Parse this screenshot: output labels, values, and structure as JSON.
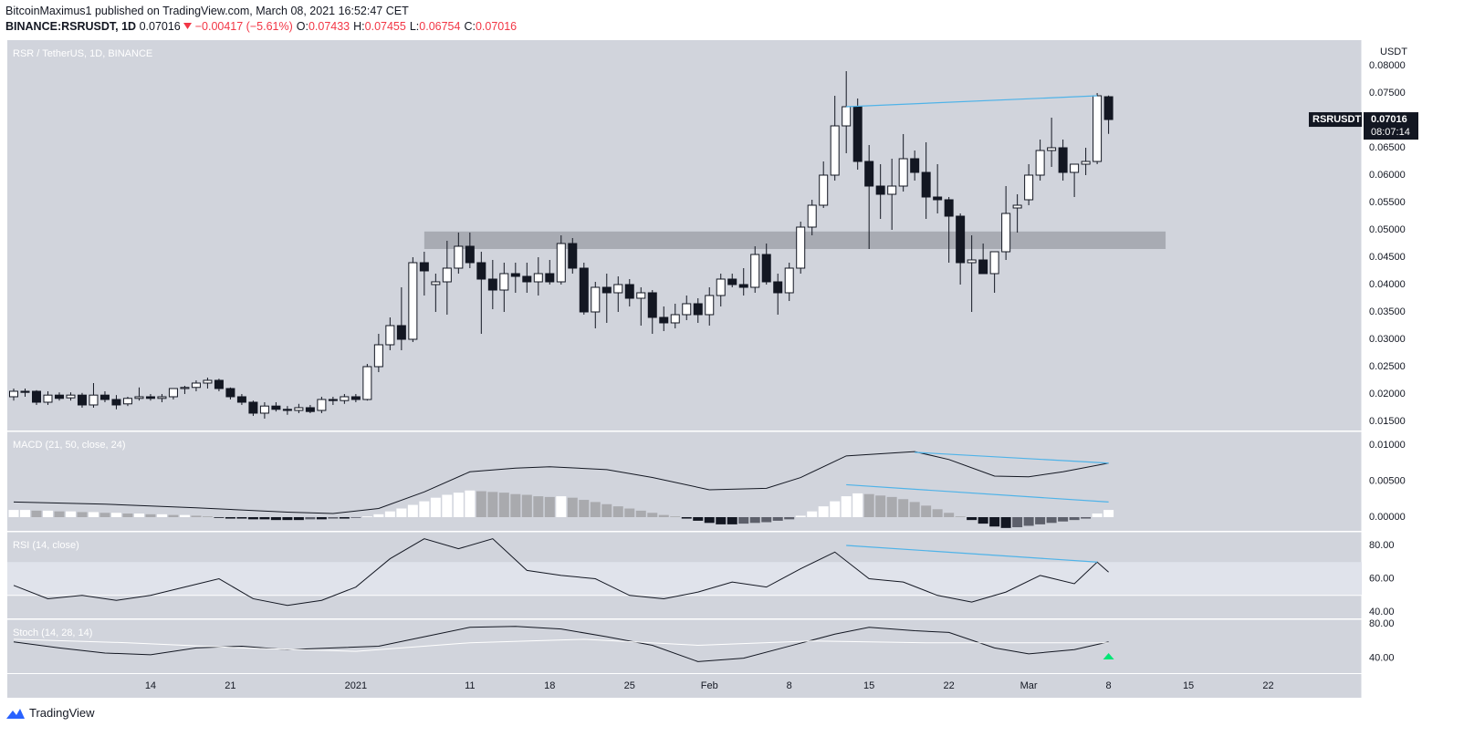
{
  "header": {
    "author": "BitcoinMaximus1",
    "published": "published on TradingView.com, March 08, 2021 16:52:47 CET",
    "symbol": "BINANCE:RSRUSDT, 1D",
    "last": "0.07016",
    "change": "−0.00417 (−5.61%)",
    "ohlc": [
      {
        "key": "O:",
        "value": "0.07433"
      },
      {
        "key": "H:",
        "value": "0.07455"
      },
      {
        "key": "L:",
        "value": "0.06754"
      },
      {
        "key": "C:",
        "value": "0.07016"
      }
    ]
  },
  "footer": {
    "brand": "TradingView"
  },
  "chart_data": {
    "type": "candlestick",
    "title": "RSR / TetherUS, 1D, BINANCE",
    "y_axis_label": "USDT",
    "grid": false,
    "up_color": "#ffffff",
    "down_color": "#131722",
    "background": "#d1d4dc",
    "xlim": [
      -0.56,
      118.2
    ],
    "xticks": [
      {
        "value": 12,
        "label": "14"
      },
      {
        "value": 19,
        "label": "21"
      },
      {
        "value": 30,
        "label": "2021"
      },
      {
        "value": 40,
        "label": "11"
      },
      {
        "value": 47,
        "label": "18"
      },
      {
        "value": 54,
        "label": "25"
      },
      {
        "value": 61,
        "label": "Feb"
      },
      {
        "value": 68,
        "label": "8"
      },
      {
        "value": 75,
        "label": "15"
      },
      {
        "value": 82,
        "label": "22"
      },
      {
        "value": 89,
        "label": "Mar"
      },
      {
        "value": 96,
        "label": "8"
      },
      {
        "value": 103,
        "label": "15"
      },
      {
        "value": 110,
        "label": "22"
      }
    ],
    "ylim": [
      0.01333,
      0.08467
    ],
    "yticks": [
      {
        "value": 0.08,
        "label": "0.08000"
      },
      {
        "value": 0.075,
        "label": "0.07500"
      },
      {
        "value": 0.07,
        "label": "0.07000"
      },
      {
        "value": 0.065,
        "label": "0.06500"
      },
      {
        "value": 0.06,
        "label": "0.06000"
      },
      {
        "value": 0.055,
        "label": "0.05500"
      },
      {
        "value": 0.05,
        "label": "0.05000"
      },
      {
        "value": 0.045,
        "label": "0.04500"
      },
      {
        "value": 0.04,
        "label": "0.04000"
      },
      {
        "value": 0.035,
        "label": "0.03500"
      },
      {
        "value": 0.03,
        "label": "0.03000"
      },
      {
        "value": 0.025,
        "label": "0.02500"
      },
      {
        "value": 0.02,
        "label": "0.02000"
      },
      {
        "value": 0.015,
        "label": "0.01500"
      }
    ],
    "candles": [
      [
        0.0195,
        0.021,
        0.0188,
        0.0205
      ],
      [
        0.0205,
        0.021,
        0.0195,
        0.0203
      ],
      [
        0.0205,
        0.0207,
        0.018,
        0.0185
      ],
      [
        0.0185,
        0.0205,
        0.018,
        0.0198
      ],
      [
        0.0198,
        0.0203,
        0.0188,
        0.0192
      ],
      [
        0.0193,
        0.0203,
        0.0188,
        0.0198
      ],
      [
        0.0198,
        0.0202,
        0.0175,
        0.018
      ],
      [
        0.018,
        0.022,
        0.0175,
        0.0198
      ],
      [
        0.0198,
        0.0205,
        0.0185,
        0.019
      ],
      [
        0.019,
        0.0198,
        0.0172,
        0.018
      ],
      [
        0.0182,
        0.0195,
        0.0178,
        0.0192
      ],
      [
        0.0192,
        0.0212,
        0.0188,
        0.0195
      ],
      [
        0.0195,
        0.02,
        0.0188,
        0.0192
      ],
      [
        0.0192,
        0.02,
        0.0185,
        0.0195
      ],
      [
        0.0195,
        0.021,
        0.019,
        0.021
      ],
      [
        0.021,
        0.0215,
        0.02,
        0.0212
      ],
      [
        0.0212,
        0.0225,
        0.0205,
        0.022
      ],
      [
        0.022,
        0.023,
        0.021,
        0.0225
      ],
      [
        0.0225,
        0.0228,
        0.0205,
        0.021
      ],
      [
        0.021,
        0.0212,
        0.019,
        0.0195
      ],
      [
        0.0195,
        0.02,
        0.018,
        0.0185
      ],
      [
        0.0185,
        0.0188,
        0.016,
        0.0165
      ],
      [
        0.0165,
        0.0185,
        0.0155,
        0.0178
      ],
      [
        0.0178,
        0.0185,
        0.0168,
        0.0172
      ],
      [
        0.0172,
        0.0178,
        0.0162,
        0.017
      ],
      [
        0.017,
        0.0182,
        0.0165,
        0.0175
      ],
      [
        0.0175,
        0.018,
        0.0165,
        0.0168
      ],
      [
        0.017,
        0.0195,
        0.0165,
        0.019
      ],
      [
        0.019,
        0.0195,
        0.018,
        0.0188
      ],
      [
        0.0188,
        0.02,
        0.0182,
        0.0195
      ],
      [
        0.0195,
        0.02,
        0.0185,
        0.019
      ],
      [
        0.019,
        0.0255,
        0.0188,
        0.025
      ],
      [
        0.025,
        0.031,
        0.024,
        0.029
      ],
      [
        0.029,
        0.034,
        0.028,
        0.0325
      ],
      [
        0.0325,
        0.0395,
        0.028,
        0.03
      ],
      [
        0.03,
        0.045,
        0.0295,
        0.044
      ],
      [
        0.044,
        0.046,
        0.038,
        0.0425
      ],
      [
        0.04,
        0.042,
        0.035,
        0.0405
      ],
      [
        0.0405,
        0.048,
        0.0345,
        0.043
      ],
      [
        0.043,
        0.0495,
        0.042,
        0.047
      ],
      [
        0.047,
        0.0495,
        0.043,
        0.044
      ],
      [
        0.044,
        0.046,
        0.031,
        0.041
      ],
      [
        0.041,
        0.0445,
        0.0355,
        0.039
      ],
      [
        0.039,
        0.044,
        0.035,
        0.042
      ],
      [
        0.042,
        0.044,
        0.0385,
        0.0415
      ],
      [
        0.0415,
        0.044,
        0.0385,
        0.0405
      ],
      [
        0.0405,
        0.045,
        0.038,
        0.042
      ],
      [
        0.042,
        0.0445,
        0.04,
        0.0405
      ],
      [
        0.0405,
        0.049,
        0.04,
        0.0475
      ],
      [
        0.0475,
        0.0485,
        0.042,
        0.043
      ],
      [
        0.043,
        0.044,
        0.0345,
        0.035
      ],
      [
        0.035,
        0.0405,
        0.032,
        0.0395
      ],
      [
        0.0395,
        0.042,
        0.033,
        0.0385
      ],
      [
        0.0385,
        0.0415,
        0.035,
        0.04
      ],
      [
        0.04,
        0.041,
        0.036,
        0.0375
      ],
      [
        0.0375,
        0.0395,
        0.0325,
        0.0385
      ],
      [
        0.0385,
        0.039,
        0.031,
        0.034
      ],
      [
        0.034,
        0.036,
        0.0315,
        0.033
      ],
      [
        0.033,
        0.0365,
        0.032,
        0.0345
      ],
      [
        0.0345,
        0.038,
        0.0335,
        0.0365
      ],
      [
        0.0365,
        0.0375,
        0.033,
        0.0345
      ],
      [
        0.0345,
        0.0395,
        0.0325,
        0.038
      ],
      [
        0.038,
        0.042,
        0.036,
        0.041
      ],
      [
        0.041,
        0.042,
        0.0395,
        0.04
      ],
      [
        0.04,
        0.043,
        0.038,
        0.0395
      ],
      [
        0.0395,
        0.047,
        0.0385,
        0.0455
      ],
      [
        0.0455,
        0.0475,
        0.04,
        0.0405
      ],
      [
        0.0405,
        0.042,
        0.0345,
        0.0385
      ],
      [
        0.0385,
        0.044,
        0.037,
        0.043
      ],
      [
        0.043,
        0.0515,
        0.042,
        0.0505
      ],
      [
        0.0505,
        0.0555,
        0.049,
        0.0545
      ],
      [
        0.0545,
        0.0625,
        0.054,
        0.06
      ],
      [
        0.06,
        0.0745,
        0.059,
        0.069
      ],
      [
        0.069,
        0.079,
        0.064,
        0.0725
      ],
      [
        0.0725,
        0.074,
        0.061,
        0.0625
      ],
      [
        0.0625,
        0.0655,
        0.0465,
        0.058
      ],
      [
        0.058,
        0.062,
        0.052,
        0.0565
      ],
      [
        0.0565,
        0.063,
        0.05,
        0.058
      ],
      [
        0.058,
        0.0675,
        0.057,
        0.063
      ],
      [
        0.063,
        0.0645,
        0.059,
        0.0605
      ],
      [
        0.0605,
        0.066,
        0.052,
        0.056
      ],
      [
        0.056,
        0.062,
        0.053,
        0.0555
      ],
      [
        0.0555,
        0.056,
        0.044,
        0.0525
      ],
      [
        0.0525,
        0.053,
        0.04,
        0.044
      ],
      [
        0.044,
        0.049,
        0.035,
        0.0445
      ],
      [
        0.0445,
        0.0475,
        0.042,
        0.042
      ],
      [
        0.042,
        0.046,
        0.0385,
        0.046
      ],
      [
        0.046,
        0.058,
        0.0445,
        0.053
      ],
      [
        0.054,
        0.0565,
        0.0495,
        0.0545
      ],
      [
        0.0555,
        0.062,
        0.0545,
        0.06
      ],
      [
        0.06,
        0.0665,
        0.059,
        0.0645
      ],
      [
        0.0645,
        0.0705,
        0.0615,
        0.065
      ],
      [
        0.065,
        0.0665,
        0.059,
        0.0605
      ],
      [
        0.0605,
        0.062,
        0.056,
        0.062
      ],
      [
        0.062,
        0.065,
        0.06,
        0.0625
      ],
      [
        0.0625,
        0.075,
        0.062,
        0.0745
      ],
      [
        0.07433,
        0.07455,
        0.06754,
        0.07016
      ]
    ],
    "zone": {
      "x": [
        36,
        101
      ],
      "values": [
        0.0465,
        0.0497
      ],
      "color": "#a8abb3"
    },
    "trendline": {
      "x": [
        73,
        95
      ],
      "values": [
        0.0725,
        0.0745
      ],
      "color": "#4fb3e8"
    },
    "last_price": {
      "symbol": "RSRUSDT",
      "price": "0.07016",
      "countdown": "08:07:14"
    },
    "indicators": [
      {
        "type": "macd",
        "title": "MACD (21, 50, close, 24)",
        "ylim": [
          -0.0019,
          0.0119
        ],
        "yticks": [
          {
            "value": 0.01,
            "label": "0.01000"
          },
          {
            "value": 0.005,
            "label": "0.00500"
          },
          {
            "value": 0,
            "label": "0.00000"
          }
        ],
        "histogram": {
          "colors": [
            "#ffffff",
            "#a9aaae",
            "#5d606b",
            "#131722"
          ],
          "values": [
            0.001,
            0.001,
            0.0009,
            0.0009,
            0.0008,
            0.0008,
            0.0007,
            0.0007,
            0.0006,
            0.0006,
            0.0005,
            0.0005,
            0.0004,
            0.0004,
            0.0003,
            0.0003,
            0.0002,
            0.0001,
            -0.0001,
            -0.0002,
            -0.0002,
            -0.0003,
            -0.0003,
            -0.0004,
            -0.0004,
            -0.0004,
            -0.0003,
            -0.0003,
            -0.0002,
            -0.0002,
            -0.0001,
            0.0001,
            0.0004,
            0.0008,
            0.0012,
            0.0017,
            0.0022,
            0.0027,
            0.0031,
            0.0034,
            0.0037,
            0.0036,
            0.0035,
            0.0034,
            0.0032,
            0.0031,
            0.0029,
            0.0028,
            0.0029,
            0.0027,
            0.0024,
            0.0021,
            0.0018,
            0.0015,
            0.0012,
            0.0009,
            0.0006,
            0.0003,
            0.0001,
            -0.0002,
            -0.0005,
            -0.0008,
            -0.001,
            -0.001,
            -0.0009,
            -0.0008,
            -0.0007,
            -0.0005,
            -0.0003,
            0.0002,
            0.0008,
            0.0015,
            0.0022,
            0.0029,
            0.0033,
            0.0032,
            0.003,
            0.0028,
            0.0025,
            0.0021,
            0.0016,
            0.0011,
            0.0006,
            0.0001,
            -0.0004,
            -0.0009,
            -0.0013,
            -0.0015,
            -0.0014,
            -0.0012,
            -0.001,
            -0.0008,
            -0.0006,
            -0.0004,
            -0.0002,
            0.0005,
            0.001
          ]
        },
        "series": [
          {
            "color": "#131722",
            "x": [
              0,
              8,
              16,
              24,
              28,
              32,
              36,
              40,
              44,
              47,
              52,
              56,
              61,
              66,
              69,
              73,
              76,
              79,
              82,
              86,
              89,
              92,
              96
            ],
            "values": [
              0.0021,
              0.0018,
              0.0013,
              0.0007,
              0.0005,
              0.0012,
              0.0035,
              0.0063,
              0.0068,
              0.007,
              0.0066,
              0.0055,
              0.0038,
              0.004,
              0.0055,
              0.0085,
              0.0088,
              0.0091,
              0.008,
              0.0057,
              0.0056,
              0.0063,
              0.0075
            ]
          }
        ],
        "trendlines": [
          {
            "x": [
              79,
              96
            ],
            "values": [
              0.009,
              0.0075
            ],
            "color": "#4fb3e8"
          },
          {
            "x": [
              73,
              96
            ],
            "values": [
              0.0045,
              0.0021
            ],
            "color": "#4fb3e8"
          }
        ]
      },
      {
        "type": "rsi",
        "title": "RSI (14, close)",
        "ylim": [
          36.2,
          88.2
        ],
        "yticks": [
          {
            "value": 80,
            "label": "80.00"
          },
          {
            "value": 60,
            "label": "60.00"
          },
          {
            "value": 40,
            "label": "40.00"
          }
        ],
        "band": [
          50,
          70
        ],
        "series": [
          {
            "color": "#131722",
            "x": [
              0,
              3,
              6,
              9,
              12,
              15,
              18,
              21,
              24,
              27,
              30,
              33,
              36,
              39,
              42,
              45,
              48,
              51,
              54,
              57,
              60,
              63,
              66,
              69,
              72,
              75,
              78,
              81,
              84,
              87,
              90,
              93,
              95,
              96
            ],
            "values": [
              56,
              48,
              50,
              47,
              50,
              55,
              60,
              48,
              44,
              47,
              55,
              72,
              84,
              78,
              84,
              65,
              62,
              60,
              50,
              48,
              52,
              58,
              55,
              66,
              76,
              60,
              58,
              50,
              46,
              52,
              62,
              57,
              70,
              64
            ]
          }
        ],
        "trendlines": [
          {
            "x": [
              73,
              95
            ],
            "values": [
              80,
              70
            ],
            "color": "#4fb3e8"
          }
        ]
      },
      {
        "type": "stoch",
        "title": "Stoch (14, 28, 14)",
        "ylim": [
          22.6,
          85.3
        ],
        "yticks": [
          {
            "value": 80,
            "label": "80.00"
          },
          {
            "value": 40,
            "label": "40.00"
          }
        ],
        "marker": {
          "x": 96,
          "color": "#00e676"
        },
        "series": [
          {
            "color": "#131722",
            "x": [
              0,
              4,
              8,
              12,
              16,
              20,
              24,
              28,
              32,
              36,
              40,
              44,
              48,
              52,
              56,
              60,
              64,
              68,
              72,
              75,
              79,
              82,
              86,
              89,
              93,
              96
            ],
            "values": [
              59,
              52,
              46,
              44,
              52,
              54,
              50,
              52,
              54,
              65,
              76,
              77,
              74,
              65,
              55,
              36,
              40,
              54,
              68,
              76,
              72,
              70,
              52,
              45,
              50,
              59
            ]
          },
          {
            "color": "#ffffff",
            "x": [
              0,
              10,
              20,
              30,
              40,
              50,
              60,
              70,
              80,
              90,
              96
            ],
            "values": [
              62,
              58,
              52,
              48,
              58,
              62,
              55,
              60,
              58,
              58,
              58
            ]
          }
        ],
        "trendlines": []
      }
    ]
  }
}
